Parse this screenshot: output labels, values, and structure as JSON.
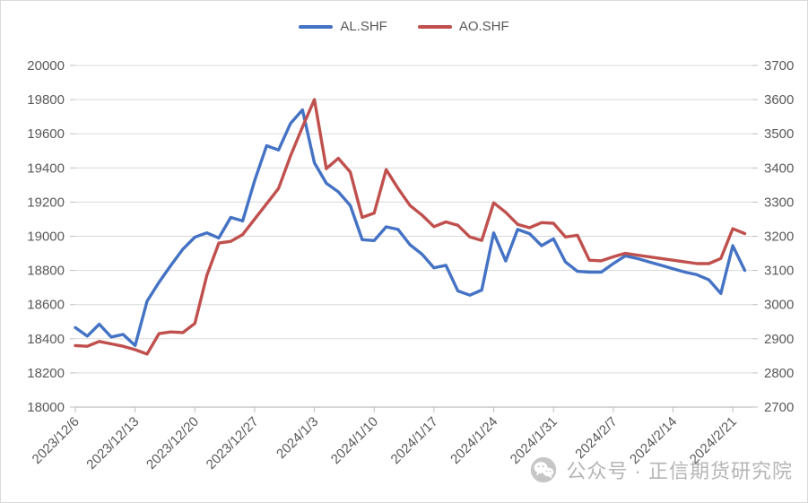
{
  "watermark": {
    "text": "公众号 · 正信期货研究院",
    "icon": "wechat-icon",
    "color": "#b5b5b5"
  },
  "colors": {
    "al_series": "#4472C4",
    "ao_series": "#C0504D",
    "gridline": "#d9d9d9",
    "axis_line": "#bfbfbf",
    "tick_label": "#595959"
  },
  "chart_data": {
    "type": "line",
    "title": "",
    "xlabel": "",
    "ylabel_left": "",
    "ylabel_right": "",
    "grid": "horizontal",
    "legend_position": "top-center",
    "x": [
      "2023/12/6",
      "2023/12/7",
      "2023/12/8",
      "2023/12/11",
      "2023/12/12",
      "2023/12/13",
      "2023/12/14",
      "2023/12/15",
      "2023/12/18",
      "2023/12/19",
      "2023/12/20",
      "2023/12/21",
      "2023/12/22",
      "2023/12/25",
      "2023/12/26",
      "2023/12/27",
      "2023/12/28",
      "2023/12/29",
      "2024/1/1",
      "2024/1/2",
      "2024/1/3",
      "2024/1/4",
      "2024/1/5",
      "2024/1/8",
      "2024/1/9",
      "2024/1/10",
      "2024/1/11",
      "2024/1/12",
      "2024/1/15",
      "2024/1/16",
      "2024/1/17",
      "2024/1/18",
      "2024/1/19",
      "2024/1/22",
      "2024/1/23",
      "2024/1/24",
      "2024/1/25",
      "2024/1/26",
      "2024/1/29",
      "2024/1/30",
      "2024/1/31",
      "2024/2/1",
      "2024/2/2",
      "2024/2/5",
      "2024/2/6",
      "2024/2/7",
      "2024/2/8",
      "2024/2/9",
      "2024/2/12",
      "2024/2/13",
      "2024/2/14",
      "2024/2/15",
      "2024/2/16",
      "2024/2/19",
      "2024/2/20",
      "2024/2/21",
      "2024/2/22"
    ],
    "x_tick_labels": [
      "2023/12/6",
      "2023/12/13",
      "2023/12/20",
      "2023/12/27",
      "2024/1/3",
      "2024/1/10",
      "2024/1/17",
      "2024/1/24",
      "2024/1/31",
      "2024/2/7",
      "2024/2/14",
      "2024/2/21"
    ],
    "x_tick_indices": [
      0,
      5,
      10,
      15,
      20,
      25,
      30,
      35,
      40,
      45,
      50,
      55
    ],
    "series": [
      {
        "name": "AL.SHF",
        "axis": "left",
        "color": "#4472C4",
        "values": [
          18465,
          18415,
          18485,
          18410,
          18425,
          18360,
          18620,
          18730,
          18830,
          18925,
          18995,
          19020,
          18990,
          19110,
          19090,
          19325,
          19530,
          19505,
          19660,
          19740,
          19430,
          19310,
          19260,
          19180,
          18980,
          18975,
          19055,
          19040,
          18950,
          18895,
          18815,
          18830,
          18680,
          18655,
          18685,
          19020,
          18855,
          19040,
          19015,
          18945,
          18985,
          18850,
          18795,
          18790,
          18790,
          18840,
          18885,
          18870,
          18850,
          18830,
          18810,
          18790,
          18775,
          18745,
          18665,
          18945,
          18800
        ]
      },
      {
        "name": "AO.SHF",
        "axis": "right",
        "color": "#C0504D",
        "values": [
          2880,
          2878,
          2892,
          2885,
          2878,
          2868,
          2855,
          2915,
          2920,
          2918,
          2945,
          3085,
          3180,
          3185,
          3205,
          3250,
          3295,
          3340,
          3435,
          3520,
          3600,
          3398,
          3428,
          3388,
          3255,
          3268,
          3395,
          3340,
          3290,
          3262,
          3228,
          3242,
          3232,
          3198,
          3188,
          3298,
          3270,
          3235,
          3225,
          3240,
          3238,
          3198,
          3203,
          3130,
          3128,
          3140,
          3150,
          3145,
          3140,
          3135,
          3130,
          3125,
          3120,
          3120,
          3135,
          3222,
          3208
        ]
      }
    ],
    "left_axis": {
      "min": 18000,
      "max": 20000,
      "step": 200,
      "tick_labels": [
        "20000",
        "19800",
        "19600",
        "19400",
        "19200",
        "19000",
        "18800",
        "18600",
        "18400",
        "18200",
        "18000"
      ]
    },
    "right_axis": {
      "min": 2700,
      "max": 3700,
      "step": 100,
      "tick_labels": [
        "3700",
        "3600",
        "3500",
        "3400",
        "3300",
        "3200",
        "3100",
        "3000",
        "2900",
        "2800",
        "2700"
      ]
    }
  }
}
